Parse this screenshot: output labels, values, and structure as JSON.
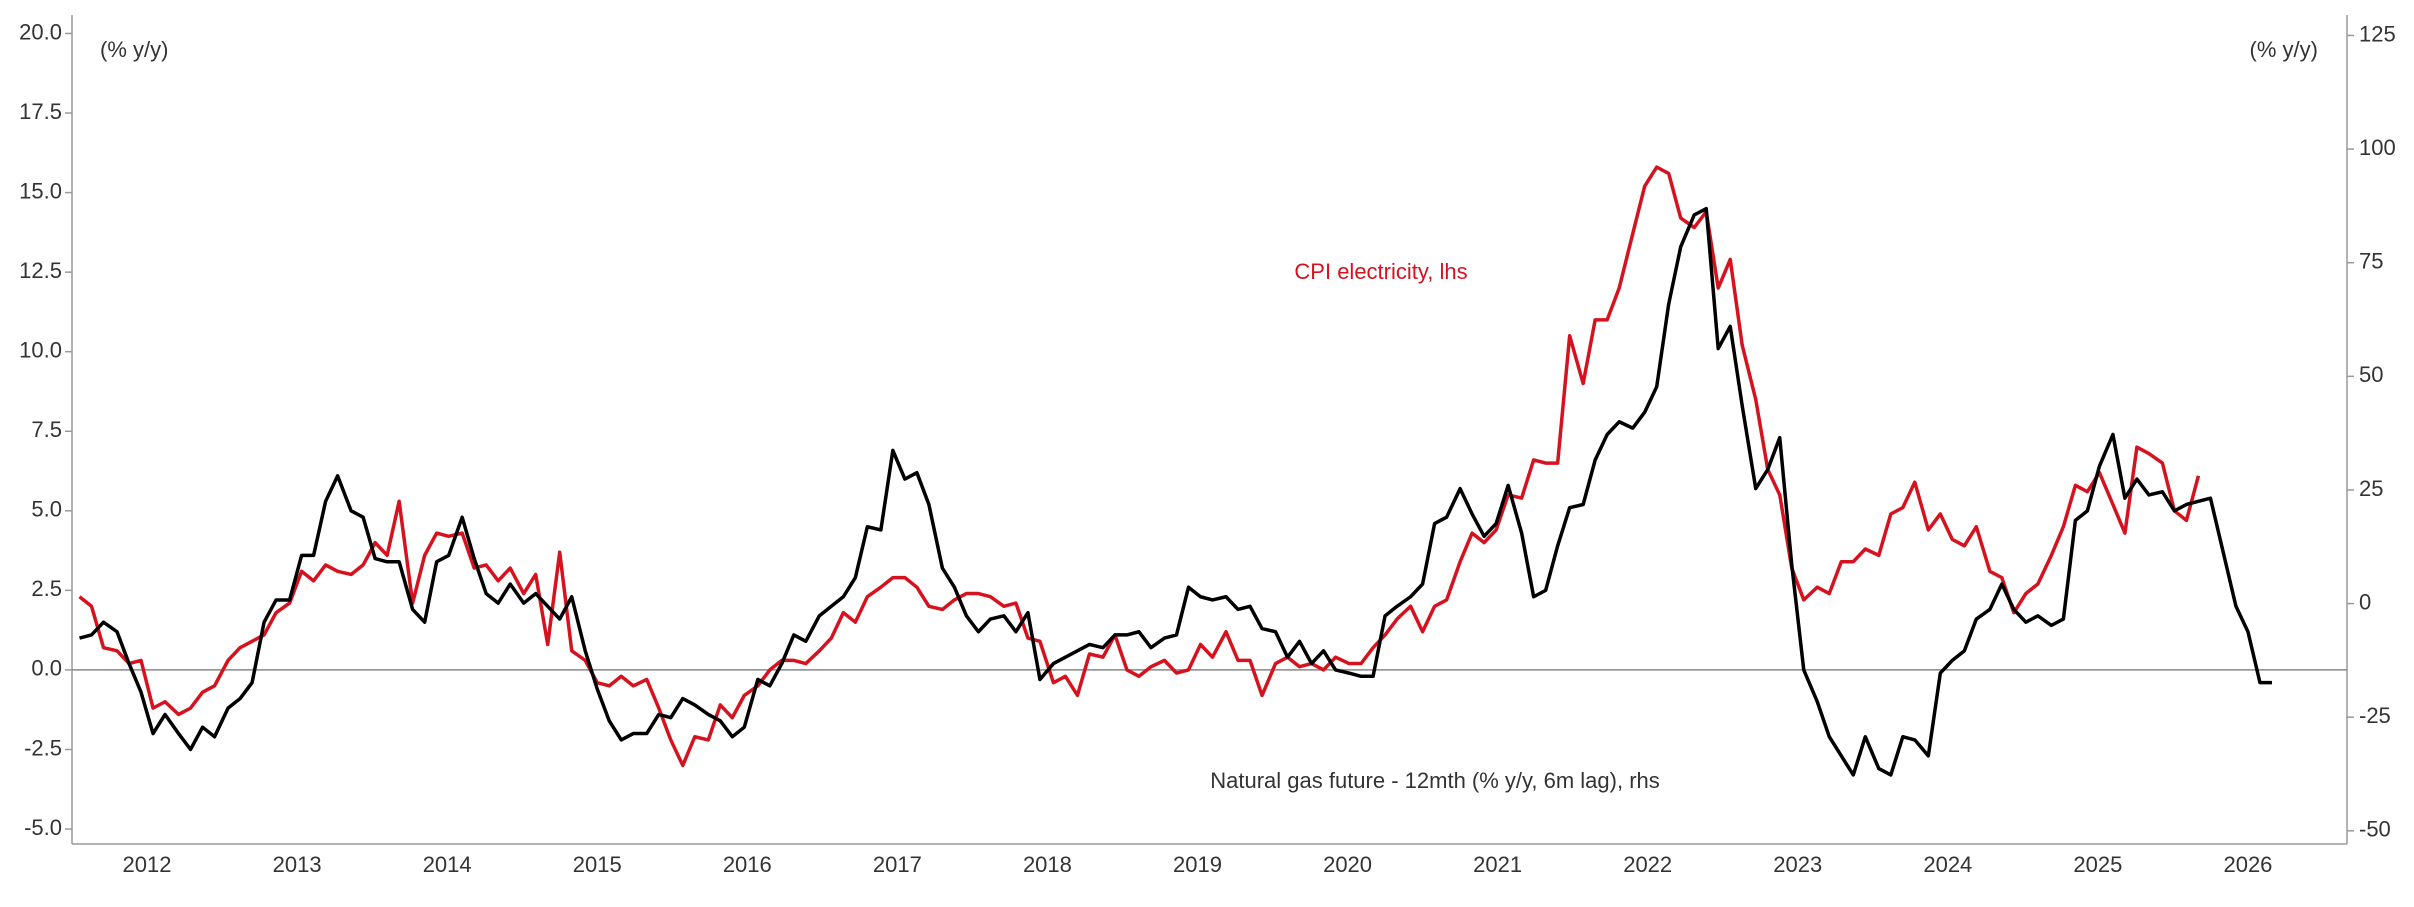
{
  "chart_data": {
    "type": "line",
    "ylabel": "(% y/y)",
    "y2label": "(% y/y)",
    "x": [
      2011.55,
      2011.63,
      2011.71,
      2011.8,
      2011.88,
      2011.96,
      2012.04,
      2012.12,
      2012.21,
      2012.29,
      2012.37,
      2012.45,
      2012.54,
      2012.62,
      2012.7,
      2012.78,
      2012.86,
      2012.95,
      2013.03,
      2013.11,
      2013.19,
      2013.27,
      2013.36,
      2013.44,
      2013.52,
      2013.6,
      2013.68,
      2013.77,
      2013.85,
      2013.93,
      2014.01,
      2014.1,
      2014.18,
      2014.26,
      2014.34,
      2014.42,
      2014.51,
      2014.59,
      2014.67,
      2014.75,
      2014.83,
      2014.92,
      2015.0,
      2015.08,
      2015.16,
      2015.24,
      2015.33,
      2015.41,
      2015.49,
      2015.57,
      2015.65,
      2015.74,
      2015.82,
      2015.9,
      2015.98,
      2016.07,
      2016.15,
      2016.23,
      2016.31,
      2016.39,
      2016.48,
      2016.56,
      2016.64,
      2016.72,
      2016.8,
      2016.89,
      2016.97,
      2017.05,
      2017.13,
      2017.21,
      2017.3,
      2017.38,
      2017.46,
      2017.54,
      2017.62,
      2017.71,
      2017.79,
      2017.87,
      2017.95,
      2018.04,
      2018.12,
      2018.2,
      2018.28,
      2018.37,
      2018.45,
      2018.53,
      2018.61,
      2018.69,
      2018.78,
      2018.86,
      2018.94,
      2019.02,
      2019.1,
      2019.19,
      2019.27,
      2019.35,
      2019.43,
      2019.52,
      2019.6,
      2019.68,
      2019.76,
      2019.84,
      2019.92,
      2020.01,
      2020.09,
      2020.17,
      2020.25,
      2020.33,
      2020.42,
      2020.5,
      2020.58,
      2020.66,
      2020.75,
      2020.83,
      2020.91,
      2020.99,
      2021.07,
      2021.16,
      2021.24,
      2021.32,
      2021.4,
      2021.48,
      2021.57,
      2021.65,
      2021.73,
      2021.81,
      2021.9,
      2021.98,
      2022.06,
      2022.14,
      2022.22,
      2022.31,
      2022.39,
      2022.47,
      2022.55,
      2022.63,
      2022.72,
      2022.8,
      2022.88,
      2022.96,
      2023.04,
      2023.13,
      2023.21,
      2023.29,
      2023.37,
      2023.45,
      2023.54,
      2023.62,
      2023.7,
      2023.78,
      2023.87,
      2023.95,
      2024.03,
      2024.11,
      2024.19,
      2024.28,
      2024.36,
      2024.44,
      2024.52,
      2024.6,
      2024.69,
      2024.77,
      2024.85,
      2024.93,
      2025.01,
      2025.1,
      2025.18,
      2025.26,
      2025.34,
      2025.43,
      2025.51,
      2025.59,
      2025.67,
      2025.75,
      2025.84,
      2025.92,
      2026.0,
      2026.08,
      2026.16
    ],
    "series": [
      {
        "name": "CPI electricity, lhs",
        "color": "#d7121f",
        "axis": "y",
        "values": [
          2.3,
          2.0,
          0.7,
          0.6,
          0.2,
          0.3,
          -1.2,
          -1.0,
          -1.4,
          -1.2,
          -0.7,
          -0.5,
          0.3,
          0.7,
          0.9,
          1.1,
          1.8,
          2.1,
          3.1,
          2.8,
          3.3,
          3.1,
          3.0,
          3.3,
          4.0,
          3.6,
          5.3,
          2.1,
          3.6,
          4.3,
          4.2,
          4.3,
          3.2,
          3.3,
          2.8,
          3.2,
          2.4,
          3.0,
          0.8,
          3.7,
          0.6,
          0.3,
          -0.4,
          -0.5,
          -0.2,
          -0.5,
          -0.3,
          -1.2,
          -2.2,
          -3.0,
          -2.1,
          -2.2,
          -1.1,
          -1.5,
          -0.8,
          -0.5,
          0.0,
          0.3,
          0.3,
          0.2,
          0.6,
          1.0,
          1.8,
          1.5,
          2.3,
          2.6,
          2.9,
          2.9,
          2.6,
          2.0,
          1.9,
          2.2,
          2.4,
          2.4,
          2.3,
          2.0,
          2.1,
          1.0,
          0.9,
          -0.4,
          -0.2,
          -0.8,
          0.5,
          0.4,
          1.1,
          0.0,
          -0.2,
          0.1,
          0.3,
          -0.1,
          0.0,
          0.8,
          0.4,
          1.2,
          0.3,
          0.3,
          -0.8,
          0.2,
          0.4,
          0.1,
          0.2,
          0.0,
          0.4,
          0.2,
          0.2,
          0.7,
          1.1,
          1.6,
          2.0,
          1.2,
          2.0,
          2.2,
          3.4,
          4.3,
          4.0,
          4.4,
          5.5,
          5.4,
          6.6,
          6.5,
          6.5,
          10.5,
          9.0,
          11.0,
          11.0,
          12.0,
          13.7,
          15.2,
          15.8,
          15.6,
          14.2,
          13.9,
          14.4,
          12.0,
          12.9,
          10.2,
          8.5,
          6.3,
          5.5,
          3.2,
          2.2,
          2.6,
          2.4,
          3.4,
          3.4,
          3.8,
          3.6,
          4.9,
          5.1,
          5.9,
          4.4,
          4.9,
          4.1,
          3.9,
          4.5,
          3.1,
          2.9,
          1.8,
          2.4,
          2.7,
          3.6,
          4.5,
          5.8,
          5.6,
          6.2,
          5.2,
          4.3,
          7.0,
          6.8,
          6.5,
          5.0,
          4.7,
          6.1,
          null,
          null,
          null,
          null,
          null,
          null
        ]
      },
      {
        "name": "Natural gas future - 12mth (% y/y, 6m lag), rhs",
        "color": "#000000",
        "axis": "y2",
        "values": [
          -7.6,
          -6.9,
          -4.1,
          -6.2,
          -13.2,
          -19.5,
          -28.6,
          -24.4,
          -28.6,
          -32.1,
          -27.2,
          -29.3,
          -23.0,
          -20.9,
          -17.4,
          -4.1,
          0.8,
          0.8,
          10.6,
          10.6,
          22.5,
          28.1,
          20.4,
          19.0,
          9.9,
          9.2,
          9.2,
          -1.3,
          -4.1,
          9.2,
          10.6,
          19.0,
          9.9,
          2.2,
          0.1,
          4.3,
          0.1,
          2.2,
          -0.6,
          -3.4,
          1.5,
          -10.4,
          -18.8,
          -25.8,
          -30.0,
          -28.6,
          -28.6,
          -24.4,
          -25.1,
          -20.9,
          -22.3,
          -24.4,
          -25.8,
          -29.3,
          -27.2,
          -16.7,
          -18.1,
          -13.2,
          -6.9,
          -8.3,
          -2.7,
          -0.6,
          1.5,
          5.7,
          16.9,
          16.2,
          33.7,
          27.4,
          28.8,
          21.8,
          7.8,
          3.6,
          -2.7,
          -6.2,
          -3.4,
          -2.7,
          -6.2,
          -2.0,
          -16.7,
          -13.2,
          -11.8,
          -10.4,
          -9.0,
          -9.7,
          -6.9,
          -6.9,
          -6.2,
          -9.7,
          -7.6,
          -6.9,
          3.6,
          1.5,
          0.8,
          1.5,
          -1.3,
          -0.6,
          -5.5,
          -6.2,
          -11.8,
          -8.3,
          -13.2,
          -10.4,
          -14.6,
          -15.3,
          -16.0,
          -16.0,
          -2.7,
          -0.6,
          1.5,
          4.3,
          17.6,
          19.0,
          25.3,
          19.7,
          14.8,
          17.6,
          26.0,
          15.5,
          1.5,
          2.9,
          12.7,
          21.1,
          21.8,
          31.6,
          37.2,
          40.0,
          38.6,
          42.1,
          47.7,
          65.9,
          78.5,
          85.5,
          86.9,
          56.1,
          61.0,
          43.5,
          25.3,
          29.5,
          36.5,
          8.5,
          -14.6,
          -21.6,
          -29.3,
          -33.5,
          -37.7,
          -29.3,
          -36.3,
          -37.7,
          -29.3,
          -30.0,
          -33.5,
          -15.3,
          -12.5,
          -10.4,
          -3.4,
          -1.3,
          4.3,
          -1.3,
          -4.1,
          -2.7,
          -4.8,
          -3.4,
          18.3,
          20.4,
          30.2,
          37.2,
          23.2,
          27.4,
          23.9,
          24.6,
          20.4,
          21.8,
          22.5,
          23.2,
          10.6,
          -0.6,
          -6.2,
          -17.4,
          -17.4
        ]
      }
    ],
    "xlim": [
      2011.5,
      2026.66
    ],
    "xticks": [
      2012,
      2013,
      2014,
      2015,
      2016,
      2017,
      2018,
      2019,
      2020,
      2021,
      2022,
      2023,
      2024,
      2025,
      2026
    ],
    "ylim": [
      -5.47,
      20.58
    ],
    "yticks": [
      {
        "value": -5.0,
        "label": "-5.0"
      },
      -2.5,
      {
        "value": 0.0,
        "label": "0.0"
      },
      2.5,
      {
        "value": 5.0,
        "label": "5.0"
      },
      7.5,
      {
        "value": 10.0,
        "label": "10.0"
      },
      12.5,
      {
        "value": 15.0,
        "label": "15.0"
      },
      17.5,
      {
        "value": 20.0,
        "label": "20.0"
      }
    ],
    "y2lim": [
      -52.9,
      129.5
    ],
    "y2ticks": [
      -50,
      -25,
      0,
      25,
      50,
      75,
      100,
      125
    ],
    "zero_line": true
  }
}
